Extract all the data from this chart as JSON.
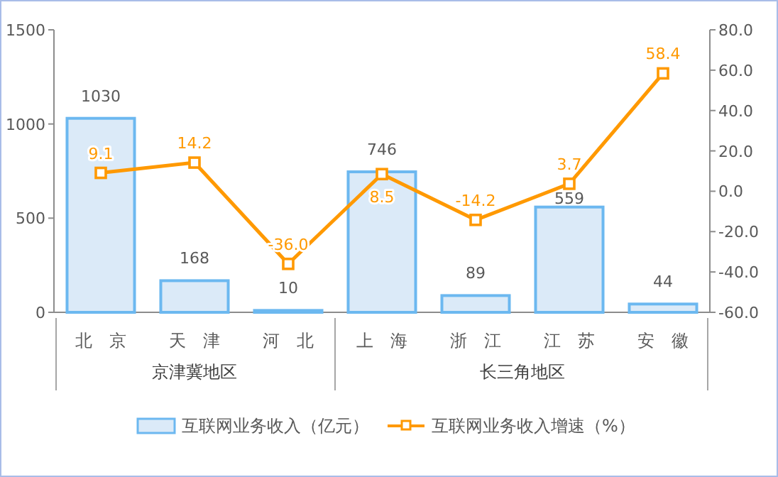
{
  "chart_data": {
    "type": "bar",
    "categories": [
      "北 京",
      "天 津",
      "河 北",
      "上 海",
      "浙 江",
      "江 苏",
      "安 徽"
    ],
    "series": [
      {
        "name": "互联网业务收入（亿元）",
        "color": "#6cb8f0",
        "values": [
          1030,
          168,
          10,
          746,
          89,
          559,
          44
        ],
        "value_labels": [
          "1030",
          "168",
          "10",
          "746",
          "89",
          "559",
          "44"
        ]
      },
      {
        "name": "互联网业务收入增速（%）",
        "type": "line",
        "axis": "y2",
        "color": "#ff9900",
        "values": [
          9.1,
          14.2,
          -36.0,
          8.5,
          -14.2,
          3.7,
          58.4
        ],
        "value_labels": [
          "9.1",
          "14.2",
          "-36.0",
          "8.5",
          "-14.2",
          "3.7",
          "58.4"
        ]
      }
    ],
    "ylim": [
      0,
      1500
    ],
    "yticks": [
      0,
      500,
      1000,
      1500
    ],
    "y2lim": [
      -60,
      80
    ],
    "y2ticks": [
      {
        "value": -60,
        "label": "-60.0"
      },
      {
        "value": -40,
        "label": "-40.0"
      },
      {
        "value": -20,
        "label": "-20.0"
      },
      {
        "value": 0,
        "label": "0.0"
      },
      {
        "value": 20,
        "label": "20.0"
      },
      {
        "value": 40,
        "label": "40.0"
      },
      {
        "value": 60,
        "label": "60.0"
      },
      {
        "value": 80,
        "label": "80.0"
      }
    ],
    "annotations": [
      "京津冀地区",
      "长三角地区"
    ],
    "marker": "square",
    "line_style": "solid",
    "grid": false,
    "legend": "bottom"
  }
}
